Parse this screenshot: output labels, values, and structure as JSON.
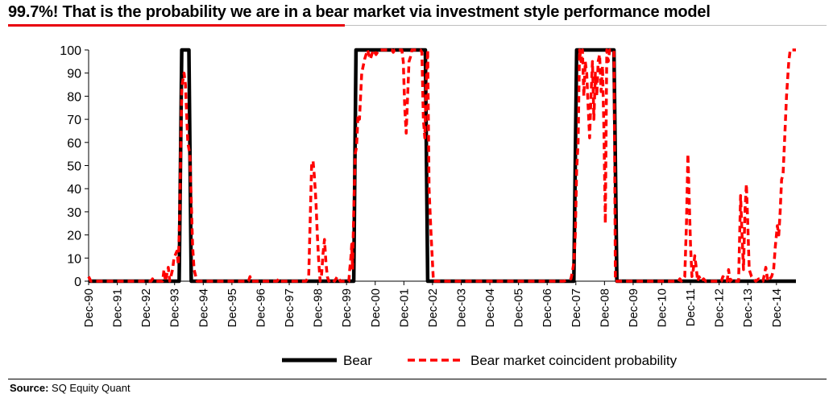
{
  "title": "99.7%! That is the probability we are in a bear market via investment style performance model",
  "source": {
    "label": "Source:",
    "text": "SQ Equity Quant"
  },
  "colors": {
    "bear": "#000000",
    "probability": "#ff0000",
    "title_rule": "#e8000b"
  },
  "chart_data": {
    "type": "line",
    "title": "",
    "xlabel": "",
    "ylabel": "",
    "ylim": [
      0,
      100
    ],
    "yticks": [
      0,
      10,
      20,
      30,
      40,
      50,
      60,
      70,
      80,
      90,
      100
    ],
    "xlim": [
      1990.92,
      2015.6
    ],
    "xtick_labels": [
      "Dec-90",
      "Dec-91",
      "Dec-92",
      "Dec-93",
      "Dec-94",
      "Dec-95",
      "Dec-96",
      "Dec-97",
      "Dec-98",
      "Dec-99",
      "Dec-00",
      "Dec-01",
      "Dec-02",
      "Dec-03",
      "Dec-04",
      "Dec-05",
      "Dec-06",
      "Dec-07",
      "Dec-08",
      "Dec-09",
      "Dec-10",
      "Dec-11",
      "Dec-12",
      "Dec-13",
      "Dec-14"
    ],
    "grid": false,
    "legend": "bottom",
    "series": [
      {
        "name": "Bear",
        "style": "solid",
        "points": [
          [
            1990.92,
            0
          ],
          [
            1994.08,
            0
          ],
          [
            1994.17,
            100
          ],
          [
            1994.42,
            100
          ],
          [
            1994.5,
            0
          ],
          [
            2000.17,
            0
          ],
          [
            2000.25,
            100
          ],
          [
            2002.67,
            100
          ],
          [
            2002.75,
            0
          ],
          [
            2007.85,
            0
          ],
          [
            2007.95,
            100
          ],
          [
            2009.25,
            100
          ],
          [
            2009.35,
            0
          ],
          [
            2015.6,
            0
          ]
        ]
      },
      {
        "name": "Bear market coincident probability",
        "style": "dashed",
        "points": [
          [
            1990.92,
            2
          ],
          [
            1991.0,
            0
          ],
          [
            1993.1,
            0
          ],
          [
            1993.15,
            1
          ],
          [
            1993.2,
            0
          ],
          [
            1993.5,
            0
          ],
          [
            1993.55,
            5
          ],
          [
            1993.6,
            0
          ],
          [
            1993.7,
            6
          ],
          [
            1993.75,
            0
          ],
          [
            1993.85,
            5
          ],
          [
            1993.9,
            10
          ],
          [
            1994.0,
            13
          ],
          [
            1994.05,
            7
          ],
          [
            1994.1,
            30
          ],
          [
            1994.17,
            84
          ],
          [
            1994.25,
            90
          ],
          [
            1994.3,
            85
          ],
          [
            1994.38,
            60
          ],
          [
            1994.45,
            55
          ],
          [
            1994.5,
            35
          ],
          [
            1994.55,
            15
          ],
          [
            1994.6,
            5
          ],
          [
            1994.7,
            0
          ],
          [
            1996.5,
            0
          ],
          [
            1996.55,
            2
          ],
          [
            1996.6,
            0
          ],
          [
            1997.5,
            0
          ],
          [
            1997.55,
            1
          ],
          [
            1997.6,
            0
          ],
          [
            1998.5,
            0
          ],
          [
            1998.6,
            2
          ],
          [
            1998.7,
            50
          ],
          [
            1998.75,
            52
          ],
          [
            1998.8,
            45
          ],
          [
            1998.85,
            35
          ],
          [
            1998.9,
            20
          ],
          [
            1998.95,
            8
          ],
          [
            1999.0,
            0
          ],
          [
            1999.05,
            3
          ],
          [
            1999.1,
            12
          ],
          [
            1999.15,
            18
          ],
          [
            1999.2,
            8
          ],
          [
            1999.25,
            2
          ],
          [
            1999.3,
            0
          ],
          [
            1999.4,
            1
          ],
          [
            1999.5,
            0
          ],
          [
            1999.6,
            2
          ],
          [
            1999.7,
            0
          ],
          [
            2000.0,
            0
          ],
          [
            2000.03,
            5
          ],
          [
            2000.07,
            10
          ],
          [
            2000.1,
            16
          ],
          [
            2000.13,
            5
          ],
          [
            2000.17,
            30
          ],
          [
            2000.22,
            55
          ],
          [
            2000.27,
            58
          ],
          [
            2000.32,
            72
          ],
          [
            2000.37,
            70
          ],
          [
            2000.45,
            90
          ],
          [
            2000.55,
            96
          ],
          [
            2000.65,
            100
          ],
          [
            2000.75,
            96
          ],
          [
            2000.85,
            100
          ],
          [
            2000.95,
            98
          ],
          [
            2001.05,
            100
          ],
          [
            2001.5,
            100
          ],
          [
            2001.55,
            99
          ],
          [
            2001.6,
            100
          ],
          [
            2001.85,
            100
          ],
          [
            2001.9,
            95
          ],
          [
            2001.95,
            75
          ],
          [
            2002.0,
            64
          ],
          [
            2002.05,
            80
          ],
          [
            2002.1,
            95
          ],
          [
            2002.15,
            97
          ],
          [
            2002.2,
            100
          ],
          [
            2002.5,
            100
          ],
          [
            2002.55,
            99
          ],
          [
            2002.6,
            70
          ],
          [
            2002.65,
            62
          ],
          [
            2002.7,
            85
          ],
          [
            2002.75,
            100
          ],
          [
            2002.8,
            40
          ],
          [
            2002.87,
            20
          ],
          [
            2002.95,
            0
          ],
          [
            2007.5,
            0
          ],
          [
            2007.75,
            1
          ],
          [
            2007.8,
            4
          ],
          [
            2007.85,
            8
          ],
          [
            2007.9,
            20
          ],
          [
            2007.95,
            48
          ],
          [
            2008.0,
            60
          ],
          [
            2008.05,
            100
          ],
          [
            2008.1,
            95
          ],
          [
            2008.15,
            100
          ],
          [
            2008.2,
            80
          ],
          [
            2008.25,
            95
          ],
          [
            2008.3,
            90
          ],
          [
            2008.35,
            75
          ],
          [
            2008.4,
            62
          ],
          [
            2008.45,
            80
          ],
          [
            2008.5,
            95
          ],
          [
            2008.55,
            70
          ],
          [
            2008.6,
            90
          ],
          [
            2008.65,
            80
          ],
          [
            2008.7,
            95
          ],
          [
            2008.75,
            98
          ],
          [
            2008.8,
            82
          ],
          [
            2008.85,
            93
          ],
          [
            2008.9,
            66
          ],
          [
            2008.95,
            25
          ],
          [
            2009.0,
            100
          ],
          [
            2009.05,
            95
          ],
          [
            2009.1,
            100
          ],
          [
            2009.17,
            100
          ],
          [
            2009.25,
            100
          ],
          [
            2009.3,
            0
          ],
          [
            2011.5,
            0
          ],
          [
            2011.55,
            1
          ],
          [
            2011.6,
            0
          ],
          [
            2011.72,
            2
          ],
          [
            2011.78,
            25
          ],
          [
            2011.83,
            55
          ],
          [
            2011.87,
            38
          ],
          [
            2011.92,
            16
          ],
          [
            2011.97,
            2
          ],
          [
            2012.02,
            5
          ],
          [
            2012.07,
            11
          ],
          [
            2012.12,
            6
          ],
          [
            2012.17,
            0
          ],
          [
            2012.22,
            2
          ],
          [
            2012.3,
            0
          ],
          [
            2012.38,
            1
          ],
          [
            2012.45,
            0
          ],
          [
            2013.0,
            0
          ],
          [
            2013.05,
            2
          ],
          [
            2013.15,
            1
          ],
          [
            2013.2,
            0
          ],
          [
            2013.25,
            5
          ],
          [
            2013.3,
            0
          ],
          [
            2013.38,
            1
          ],
          [
            2013.45,
            0
          ],
          [
            2013.6,
            0
          ],
          [
            2013.67,
            37
          ],
          [
            2013.72,
            20
          ],
          [
            2013.77,
            5
          ],
          [
            2013.82,
            30
          ],
          [
            2013.87,
            42
          ],
          [
            2013.92,
            25
          ],
          [
            2013.97,
            5
          ],
          [
            2014.05,
            2
          ],
          [
            2014.2,
            0
          ],
          [
            2014.3,
            1
          ],
          [
            2014.45,
            0
          ],
          [
            2014.55,
            6
          ],
          [
            2014.62,
            0
          ],
          [
            2014.75,
            2
          ],
          [
            2014.82,
            5
          ],
          [
            2014.88,
            15
          ],
          [
            2014.95,
            24
          ],
          [
            2015.0,
            20
          ],
          [
            2015.05,
            30
          ],
          [
            2015.1,
            44
          ],
          [
            2015.15,
            46
          ],
          [
            2015.2,
            60
          ],
          [
            2015.27,
            80
          ],
          [
            2015.35,
            95
          ],
          [
            2015.4,
            100
          ],
          [
            2015.6,
            100
          ]
        ]
      }
    ]
  }
}
